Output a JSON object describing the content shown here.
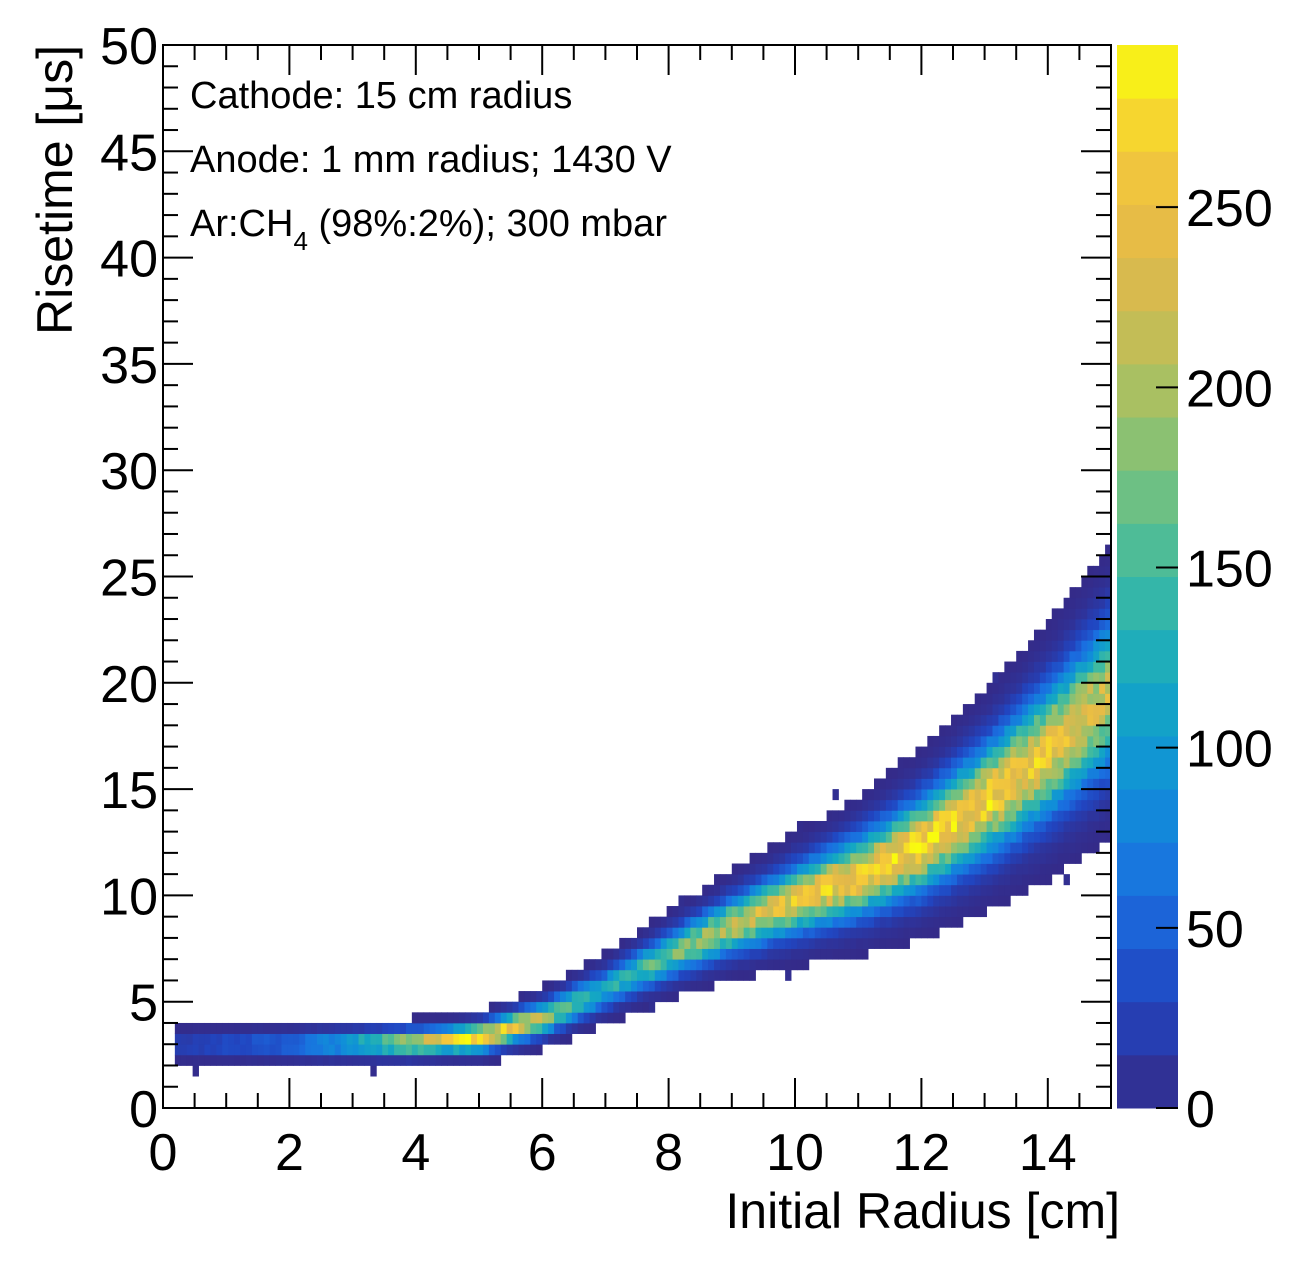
{
  "chart_data": {
    "type": "heatmap",
    "title": "",
    "xlabel": "Initial Radius [cm]",
    "ylabel": "Risetime [μs]",
    "xlim": [
      0,
      15
    ],
    "ylim": [
      0,
      50
    ],
    "x_ticks": [
      0,
      2,
      4,
      6,
      8,
      10,
      12,
      14
    ],
    "y_ticks": [
      0,
      5,
      10,
      15,
      20,
      25,
      30,
      35,
      40,
      45,
      50
    ],
    "x_tick_labels": [
      "0",
      "2",
      "4",
      "6",
      "8",
      "10",
      "12",
      "14"
    ],
    "y_tick_labels": [
      "0",
      "5",
      "10",
      "15",
      "20",
      "25",
      "30",
      "35",
      "40",
      "45",
      "50"
    ],
    "colorbar": {
      "min": 0,
      "max": 295,
      "ticks": [
        0,
        50,
        100,
        150,
        200,
        250
      ],
      "tick_labels": [
        "0",
        "50",
        "100",
        "150",
        "200",
        "250"
      ],
      "palette": [
        "#352a87",
        "#2145c0",
        "#1a6ee0",
        "#1090d8",
        "#14a8c2",
        "#3fbaa0",
        "#7cc27a",
        "#b8bf5a",
        "#e2b84a",
        "#f5c93a",
        "#f9fb0e"
      ]
    },
    "annotations": [
      "Cathode: 15 cm radius",
      "Anode: 1 mm radius; 1430 V",
      "Ar:CH",
      "4",
      " (98%:2%); 300 mbar"
    ],
    "distribution": {
      "band_center": [
        [
          0.3,
          3.0
        ],
        [
          2,
          3.0
        ],
        [
          4,
          3.1
        ],
        [
          5,
          3.3
        ],
        [
          6,
          4.2
        ],
        [
          7,
          5.6
        ],
        [
          8,
          7.2
        ],
        [
          9,
          8.6
        ],
        [
          10,
          9.8
        ],
        [
          11,
          10.9
        ],
        [
          12,
          12.4
        ],
        [
          13,
          14.4
        ],
        [
          14,
          16.8
        ],
        [
          15,
          19.5
        ]
      ],
      "band_peak_counts": [
        [
          0.3,
          25
        ],
        [
          2,
          60
        ],
        [
          3,
          120
        ],
        [
          4,
          230
        ],
        [
          5,
          290
        ],
        [
          6,
          200
        ],
        [
          7,
          120
        ],
        [
          8,
          170
        ],
        [
          9,
          210
        ],
        [
          10,
          245
        ],
        [
          11,
          260
        ],
        [
          12,
          270
        ],
        [
          13,
          265
        ],
        [
          14,
          250
        ],
        [
          15,
          220
        ]
      ]
    }
  }
}
